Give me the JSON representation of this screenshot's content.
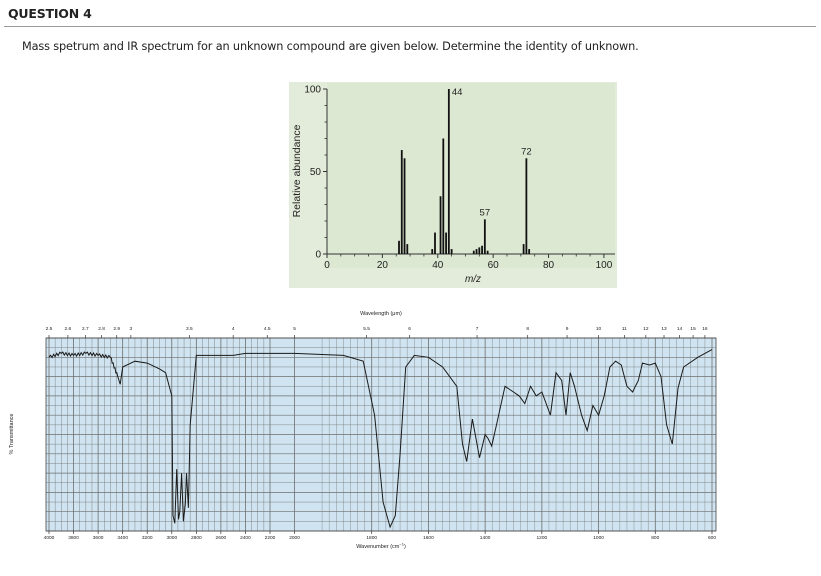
{
  "question": {
    "title": "QUESTION 4",
    "text": "Mass spetrum and IR spectrum for an unknown compound are given below. Determine the identity of unknown."
  },
  "chart_data": [
    {
      "type": "bar",
      "title": "",
      "xlabel": "m/z",
      "ylabel": "Relative abundance",
      "xlim": [
        0,
        104
      ],
      "ylim": [
        0,
        100
      ],
      "xticks": [
        "0",
        "20",
        "40",
        "60",
        "80",
        "100"
      ],
      "yticks": [
        "0",
        "50",
        "100"
      ],
      "peak_labels": [
        "44",
        "57",
        "72"
      ],
      "x": [
        26,
        27,
        28,
        29,
        38,
        39,
        41,
        42,
        43,
        44,
        45,
        53,
        54,
        55,
        56,
        57,
        58,
        71,
        72,
        73
      ],
      "values": [
        8,
        63,
        58,
        6,
        3,
        13,
        35,
        70,
        13,
        100,
        3,
        2,
        3,
        4,
        5,
        21,
        2,
        6,
        58,
        3
      ],
      "colors": {
        "plot_background": "#dde8d3",
        "bars": "#111111"
      }
    },
    {
      "type": "line",
      "title": "",
      "xlabel": "Wavenumber (cm",
      "xlabel_sup": "−1",
      "xlabel_end": ")",
      "top_xlabel": "Wavelength (μm)",
      "ylabel": "% Transmittance",
      "x_scale": "wavenumber, two-part linear scale (4000–2200 and 2000–600)",
      "xlim": [
        4000,
        600
      ],
      "ylim": [
        0,
        100
      ],
      "bottom_ticks": [
        "4000",
        "3800",
        "3600",
        "3400",
        "3200",
        "3000",
        "2800",
        "2600",
        "2400",
        "2200",
        "2000",
        "1800",
        "1600",
        "1400",
        "1200",
        "1000",
        "800",
        "600"
      ],
      "top_ticks": [
        "2.5",
        "2.6",
        "2.7",
        "2.8",
        "2.9",
        "3",
        "3.5",
        "4",
        "4.5",
        "5",
        "5.5",
        "6",
        "7",
        "8",
        "9",
        "10",
        "11",
        "12",
        "13",
        "14",
        "15",
        "16"
      ],
      "x": [
        4000,
        3900,
        3800,
        3700,
        3600,
        3500,
        3440,
        3420,
        3400,
        3300,
        3200,
        3100,
        3050,
        3000,
        2990,
        2975,
        2960,
        2945,
        2935,
        2920,
        2905,
        2890,
        2880,
        2865,
        2850,
        2800,
        2700,
        2600,
        2500,
        2400,
        2200,
        2000,
        1900,
        1830,
        1790,
        1760,
        1735,
        1717,
        1700,
        1680,
        1650,
        1600,
        1550,
        1500,
        1480,
        1465,
        1445,
        1420,
        1400,
        1390,
        1377,
        1360,
        1330,
        1300,
        1280,
        1260,
        1240,
        1220,
        1200,
        1170,
        1150,
        1130,
        1115,
        1100,
        1085,
        1060,
        1040,
        1020,
        1000,
        980,
        960,
        940,
        920,
        900,
        880,
        860,
        845,
        820,
        800,
        780,
        760,
        740,
        720,
        700,
        650,
        600
      ],
      "y": [
        90,
        92,
        91,
        92,
        91,
        90,
        80,
        76,
        85,
        88,
        87,
        84,
        82,
        70,
        8,
        4,
        32,
        6,
        10,
        30,
        5,
        14,
        30,
        12,
        55,
        91,
        91,
        91,
        91,
        92,
        92,
        92,
        91,
        88,
        60,
        15,
        2,
        8,
        40,
        85,
        91,
        90,
        85,
        75,
        45,
        36,
        58,
        38,
        50,
        48,
        44,
        55,
        75,
        72,
        70,
        66,
        75,
        70,
        72,
        60,
        82,
        78,
        60,
        82,
        75,
        60,
        52,
        65,
        60,
        70,
        85,
        88,
        86,
        75,
        72,
        78,
        87,
        86,
        87,
        80,
        55,
        45,
        74,
        85,
        90,
        94
      ],
      "grid": true,
      "colors": {
        "plot_background": "#cfe4f0",
        "grid": "#6e6e6e",
        "line": "#1a1a1a"
      }
    }
  ]
}
